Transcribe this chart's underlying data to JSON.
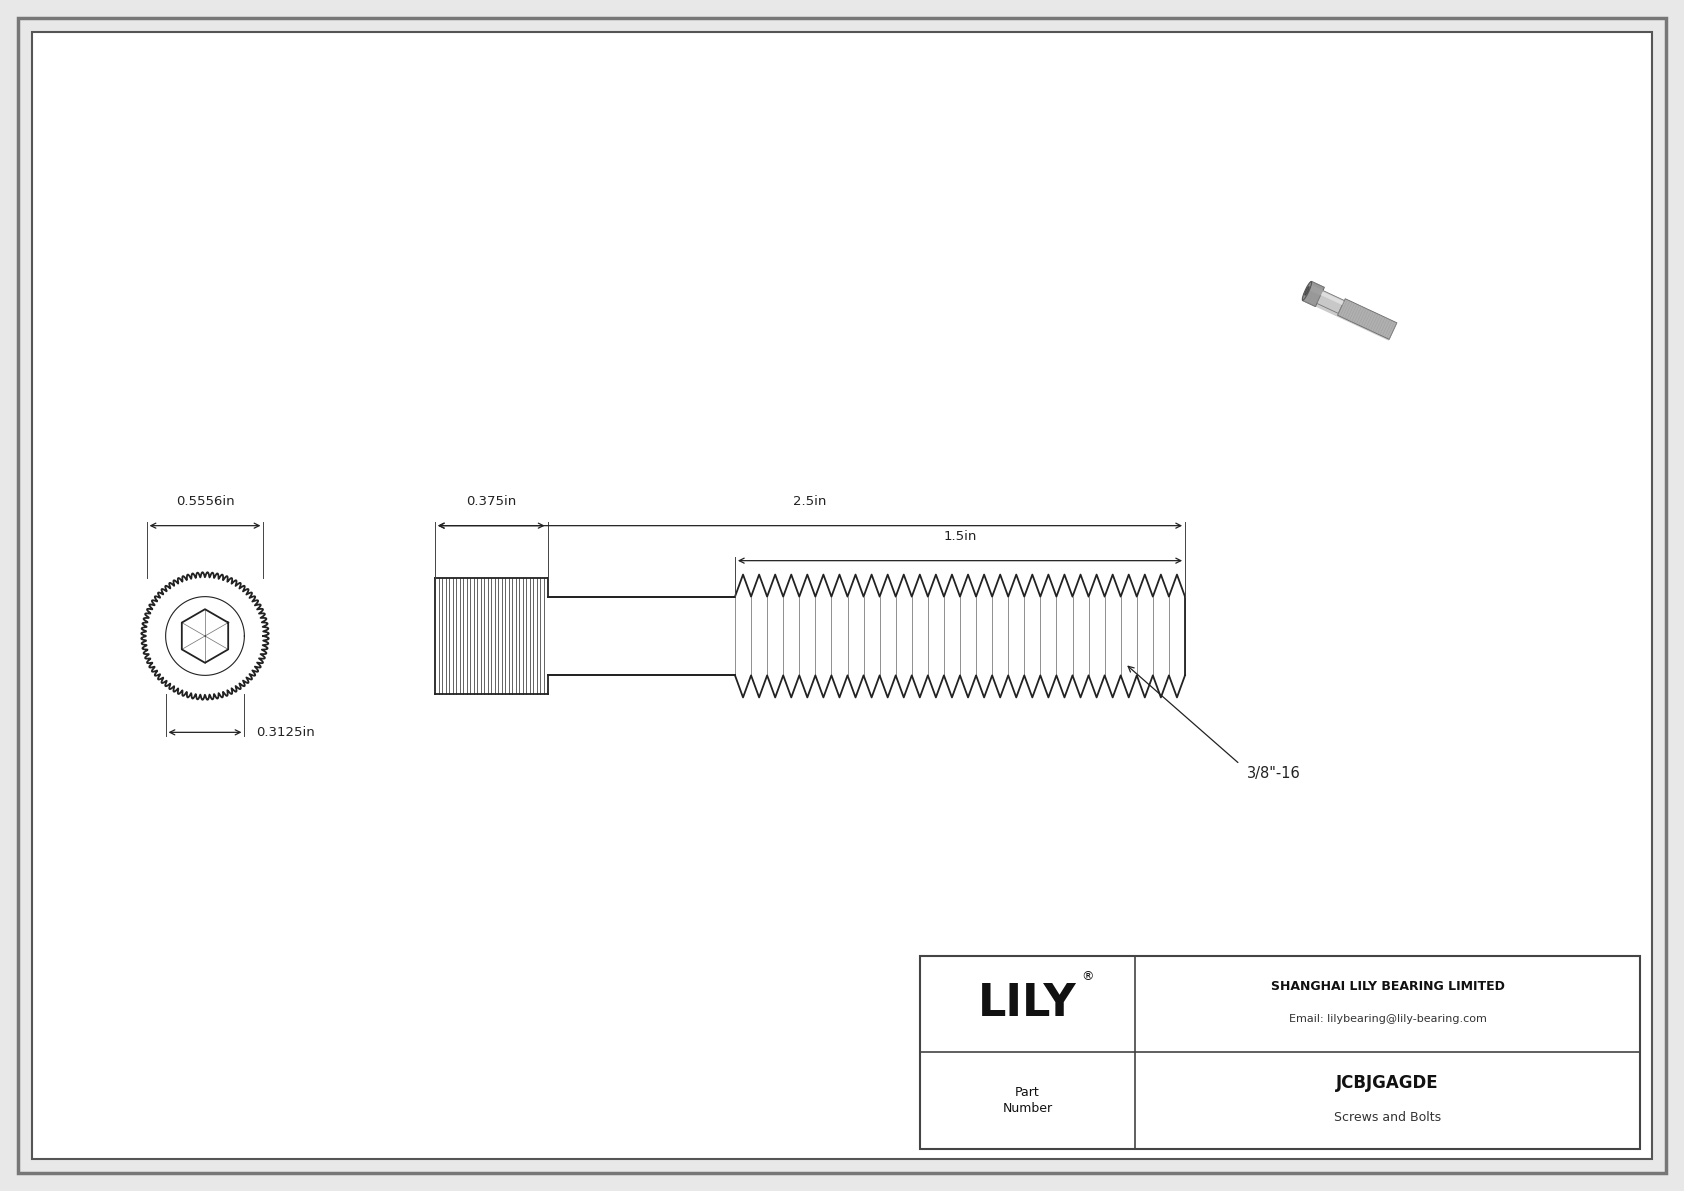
{
  "bg_color": "#e8e8e8",
  "drawing_bg": "#ffffff",
  "line_color": "#222222",
  "dim_color": "#222222",
  "title": "JCBJGAGDE",
  "subtitle": "Screws and Bolts",
  "company": "SHANGHAI LILY BEARING LIMITED",
  "email": "Email: lilybearing@lily-bearing.com",
  "part_label": "Part\nNumber",
  "logo_text": "LILY",
  "dim_head_width": "0.5556in",
  "dim_socket_width": "0.3125in",
  "dim_head_length": "0.375in",
  "dim_total_length": "2.5in",
  "dim_thread_length": "1.5in",
  "dim_thread_spec": "3/8\"-16",
  "border_color": "#888888"
}
